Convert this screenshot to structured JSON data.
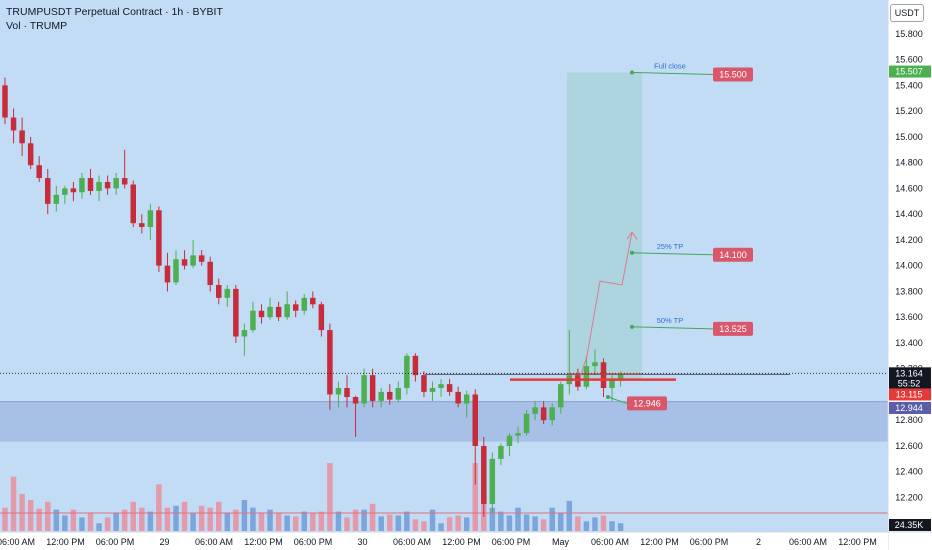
{
  "header": {
    "title": "TRUMPUSDT Perpetual Contract · 1h · BYBIT",
    "volume_label": "Vol · TRUMP",
    "unit": "USDT"
  },
  "colors": {
    "background": "#c3dcf6",
    "up": "#4caf50",
    "down": "#c62c3a",
    "volume_up": "#6f9bd6",
    "volume_down": "#e98f9d",
    "target_zone": "#a8d3dc",
    "support_band": "#a4bde6",
    "label_red": "#d9576a",
    "current_price_bg": "#131722"
  },
  "chart_data": {
    "type": "candlestick",
    "title": "TRUMPUSDT Perpetual Contract · 1h · BYBIT",
    "xlabel": "",
    "ylabel": "",
    "ylim": [
      12.0,
      15.95
    ],
    "grid": false,
    "y_ticks": [
      "15.800",
      "15.600",
      "15.400",
      "15.200",
      "15.000",
      "14.800",
      "14.600",
      "14.400",
      "14.200",
      "14.000",
      "13.800",
      "13.600",
      "13.400",
      "13.200",
      "12.800",
      "12.600",
      "12.400",
      "12.200"
    ],
    "x_ticks": [
      "06:00 AM",
      "12:00 PM",
      "06:00 PM",
      "29",
      "06:00 AM",
      "12:00 PM",
      "06:00 PM",
      "30",
      "06:00 AM",
      "12:00 PM",
      "06:00 PM",
      "May",
      "06:00 AM",
      "12:00 PM",
      "06:00 PM",
      "2",
      "06:00 AM",
      "12:00 PM"
    ],
    "candles": [
      {
        "o": 15.4,
        "h": 15.46,
        "l": 15.1,
        "c": 15.15
      },
      {
        "o": 15.15,
        "h": 15.22,
        "l": 14.95,
        "c": 15.05
      },
      {
        "o": 15.05,
        "h": 15.15,
        "l": 14.85,
        "c": 14.95
      },
      {
        "o": 14.95,
        "h": 15.0,
        "l": 14.75,
        "c": 14.78
      },
      {
        "o": 14.78,
        "h": 14.85,
        "l": 14.65,
        "c": 14.68
      },
      {
        "o": 14.68,
        "h": 14.75,
        "l": 14.4,
        "c": 14.48
      },
      {
        "o": 14.48,
        "h": 14.62,
        "l": 14.42,
        "c": 14.55
      },
      {
        "o": 14.55,
        "h": 14.62,
        "l": 14.48,
        "c": 14.6
      },
      {
        "o": 14.6,
        "h": 14.65,
        "l": 14.5,
        "c": 14.57
      },
      {
        "o": 14.57,
        "h": 14.72,
        "l": 14.52,
        "c": 14.68
      },
      {
        "o": 14.68,
        "h": 14.75,
        "l": 14.55,
        "c": 14.58
      },
      {
        "o": 14.58,
        "h": 14.7,
        "l": 14.5,
        "c": 14.65
      },
      {
        "o": 14.65,
        "h": 14.7,
        "l": 14.55,
        "c": 14.6
      },
      {
        "o": 14.6,
        "h": 14.72,
        "l": 14.55,
        "c": 14.68
      },
      {
        "o": 14.68,
        "h": 14.9,
        "l": 14.6,
        "c": 14.63
      },
      {
        "o": 14.63,
        "h": 14.66,
        "l": 14.3,
        "c": 14.33
      },
      {
        "o": 14.33,
        "h": 14.4,
        "l": 14.25,
        "c": 14.3
      },
      {
        "o": 14.3,
        "h": 14.48,
        "l": 14.2,
        "c": 14.43
      },
      {
        "o": 14.43,
        "h": 14.46,
        "l": 13.95,
        "c": 14.0
      },
      {
        "o": 14.0,
        "h": 14.1,
        "l": 13.8,
        "c": 13.87
      },
      {
        "o": 13.87,
        "h": 14.12,
        "l": 13.85,
        "c": 14.05
      },
      {
        "o": 14.05,
        "h": 14.12,
        "l": 13.97,
        "c": 14.0
      },
      {
        "o": 14.0,
        "h": 14.2,
        "l": 13.98,
        "c": 14.08
      },
      {
        "o": 14.08,
        "h": 14.12,
        "l": 14.0,
        "c": 14.03
      },
      {
        "o": 14.03,
        "h": 14.07,
        "l": 13.8,
        "c": 13.85
      },
      {
        "o": 13.85,
        "h": 13.9,
        "l": 13.7,
        "c": 13.75
      },
      {
        "o": 13.75,
        "h": 13.85,
        "l": 13.68,
        "c": 13.82
      },
      {
        "o": 13.82,
        "h": 13.85,
        "l": 13.4,
        "c": 13.45
      },
      {
        "o": 13.45,
        "h": 13.55,
        "l": 13.3,
        "c": 13.5
      },
      {
        "o": 13.5,
        "h": 13.72,
        "l": 13.48,
        "c": 13.65
      },
      {
        "o": 13.65,
        "h": 13.7,
        "l": 13.55,
        "c": 13.6
      },
      {
        "o": 13.6,
        "h": 13.75,
        "l": 13.58,
        "c": 13.68
      },
      {
        "o": 13.68,
        "h": 13.72,
        "l": 13.57,
        "c": 13.6
      },
      {
        "o": 13.6,
        "h": 13.8,
        "l": 13.58,
        "c": 13.7
      },
      {
        "o": 13.7,
        "h": 13.73,
        "l": 13.6,
        "c": 13.65
      },
      {
        "o": 13.65,
        "h": 13.78,
        "l": 13.62,
        "c": 13.75
      },
      {
        "o": 13.75,
        "h": 13.8,
        "l": 13.67,
        "c": 13.7
      },
      {
        "o": 13.7,
        "h": 13.72,
        "l": 13.45,
        "c": 13.5
      },
      {
        "o": 13.5,
        "h": 13.55,
        "l": 12.88,
        "c": 13.0
      },
      {
        "o": 13.0,
        "h": 13.1,
        "l": 12.9,
        "c": 13.05
      },
      {
        "o": 13.05,
        "h": 13.15,
        "l": 12.9,
        "c": 12.98
      },
      {
        "o": 12.98,
        "h": 12.99,
        "l": 12.67,
        "c": 12.93
      },
      {
        "o": 12.93,
        "h": 13.2,
        "l": 12.9,
        "c": 13.15
      },
      {
        "o": 13.15,
        "h": 13.2,
        "l": 12.9,
        "c": 12.95
      },
      {
        "o": 12.95,
        "h": 13.05,
        "l": 12.9,
        "c": 13.02
      },
      {
        "o": 13.02,
        "h": 13.08,
        "l": 12.92,
        "c": 12.96
      },
      {
        "o": 12.96,
        "h": 13.1,
        "l": 12.94,
        "c": 13.05
      },
      {
        "o": 13.05,
        "h": 13.32,
        "l": 13.0,
        "c": 13.3
      },
      {
        "o": 13.3,
        "h": 13.32,
        "l": 13.1,
        "c": 13.15
      },
      {
        "o": 13.15,
        "h": 13.18,
        "l": 12.98,
        "c": 13.02
      },
      {
        "o": 13.02,
        "h": 13.1,
        "l": 12.95,
        "c": 13.05
      },
      {
        "o": 13.05,
        "h": 13.12,
        "l": 12.98,
        "c": 13.08
      },
      {
        "o": 13.08,
        "h": 13.12,
        "l": 12.99,
        "c": 13.02
      },
      {
        "o": 13.02,
        "h": 13.06,
        "l": 12.9,
        "c": 12.93
      },
      {
        "o": 12.93,
        "h": 13.03,
        "l": 12.82,
        "c": 13.0
      },
      {
        "o": 13.0,
        "h": 13.04,
        "l": 12.3,
        "c": 12.6
      },
      {
        "o": 12.6,
        "h": 12.67,
        "l": 12.05,
        "c": 12.15
      },
      {
        "o": 12.15,
        "h": 12.55,
        "l": 12.08,
        "c": 12.5
      },
      {
        "o": 12.5,
        "h": 12.62,
        "l": 12.45,
        "c": 12.6
      },
      {
        "o": 12.6,
        "h": 12.7,
        "l": 12.52,
        "c": 12.68
      },
      {
        "o": 12.68,
        "h": 12.75,
        "l": 12.62,
        "c": 12.7
      },
      {
        "o": 12.7,
        "h": 12.88,
        "l": 12.68,
        "c": 12.85
      },
      {
        "o": 12.85,
        "h": 12.95,
        "l": 12.8,
        "c": 12.9
      },
      {
        "o": 12.9,
        "h": 12.95,
        "l": 12.77,
        "c": 12.8
      },
      {
        "o": 12.8,
        "h": 12.93,
        "l": 12.76,
        "c": 12.9
      },
      {
        "o": 12.9,
        "h": 13.1,
        "l": 12.85,
        "c": 13.08
      },
      {
        "o": 13.08,
        "h": 13.5,
        "l": 13.0,
        "c": 13.15
      },
      {
        "o": 13.15,
        "h": 13.2,
        "l": 13.03,
        "c": 13.06
      },
      {
        "o": 13.06,
        "h": 13.3,
        "l": 13.04,
        "c": 13.22
      },
      {
        "o": 13.22,
        "h": 13.35,
        "l": 13.15,
        "c": 13.25
      },
      {
        "o": 13.25,
        "h": 13.28,
        "l": 12.98,
        "c": 13.05
      },
      {
        "o": 13.05,
        "h": 13.15,
        "l": 12.95,
        "c": 13.12
      },
      {
        "o": 13.12,
        "h": 13.18,
        "l": 13.06,
        "c": 13.16
      }
    ],
    "volume": [
      120,
      280,
      190,
      160,
      115,
      150,
      110,
      80,
      110,
      70,
      90,
      40,
      70,
      90,
      110,
      150,
      120,
      100,
      240,
      120,
      130,
      150,
      90,
      130,
      120,
      150,
      90,
      110,
      160,
      120,
      90,
      110,
      90,
      80,
      75,
      100,
      90,
      100,
      350,
      100,
      70,
      110,
      110,
      140,
      75,
      85,
      80,
      100,
      60,
      50,
      110,
      40,
      70,
      80,
      70,
      350,
      210,
      120,
      100,
      80,
      120,
      85,
      75,
      60,
      120,
      95,
      155,
      75,
      50,
      70,
      80,
      50,
      40
    ],
    "volume_axis_label": "24.35K",
    "current_price": 13.164,
    "countdown": "55:52",
    "levels": {
      "entry_line": 13.115,
      "support_band_top": 12.944,
      "support_band_bottom": 12.634
    },
    "annotations": [
      {
        "label": "Full close",
        "price": 15.5,
        "tag": "15.500"
      },
      {
        "label": "25% TP",
        "price": 14.1,
        "tag": "14.100"
      },
      {
        "label": "50% TP",
        "price": 13.525,
        "tag": "13.525"
      },
      {
        "label": "",
        "price": 12.946,
        "tag": "12.946"
      }
    ],
    "price_labels": [
      {
        "text": "15.507",
        "price": 15.507,
        "kind": "green"
      },
      {
        "text": "13.164",
        "price": 13.164,
        "kind": "dark"
      },
      {
        "text": "55:52",
        "price": 13.086,
        "kind": "dark"
      },
      {
        "text": "13.115",
        "price": 13.0,
        "kind": "red"
      },
      {
        "text": "12.944",
        "price": 12.895,
        "kind": "purple"
      }
    ]
  }
}
